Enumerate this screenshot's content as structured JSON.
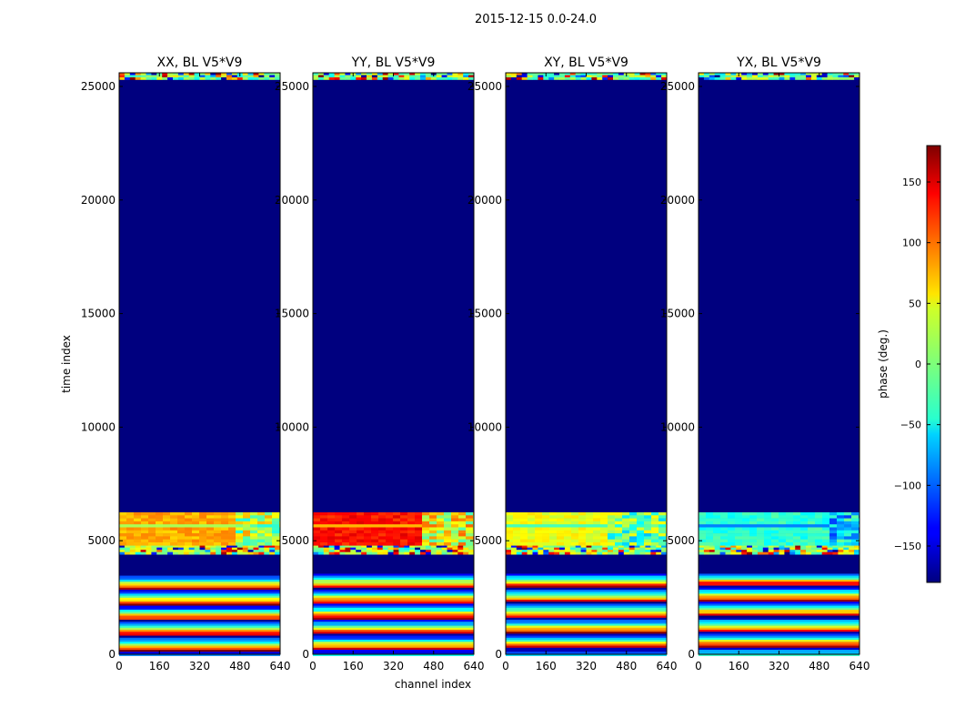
{
  "figure_title": "2015-12-15 0.0-24.0",
  "colors": {
    "masked": "#00007f",
    "frame": "#000000",
    "background": "#ffffff"
  },
  "chart_data": {
    "type": "heatmap",
    "title": "2015-12-15 0.0-24.0",
    "xlabel": "channel index",
    "ylabel": "time index",
    "xlim": [
      0,
      640
    ],
    "ylim": [
      0,
      25600
    ],
    "xticks": [
      0,
      160,
      320,
      480,
      640
    ],
    "xtick_labels": [
      "0",
      "160",
      "320",
      "480",
      "640"
    ],
    "yticks": [
      0,
      5000,
      10000,
      15000,
      20000,
      25000
    ],
    "ytick_labels": [
      "0",
      "5000",
      "10000",
      "15000",
      "20000",
      "25000"
    ],
    "colorbar": {
      "label": "phase (deg.)",
      "range": [
        -180,
        180
      ],
      "ticks": [
        -150,
        -100,
        -50,
        0,
        50,
        100,
        150
      ],
      "tick_labels": [
        "−150",
        "−100",
        "−50",
        "0",
        "50",
        "100",
        "150"
      ],
      "colormap": "jet"
    },
    "panels": [
      {
        "title": "XX, BL V5*V9",
        "regions": [
          {
            "t0": 0,
            "t1": 3550,
            "kind": "fringes",
            "mean_phase": 0
          },
          {
            "t0": 3550,
            "t1": 4400,
            "kind": "masked"
          },
          {
            "t0": 4400,
            "t1": 4800,
            "kind": "noise",
            "mean_phase": 20
          },
          {
            "t0": 4800,
            "t1": 6250,
            "kind": "band",
            "mean_phase": 75,
            "switch_channel": 450,
            "after_phase": 20
          },
          {
            "t0": 6250,
            "t1": 25300,
            "kind": "masked"
          },
          {
            "t0": 25300,
            "t1": 25600,
            "kind": "noise",
            "mean_phase": 0
          }
        ]
      },
      {
        "title": "YY, BL V5*V9",
        "regions": [
          {
            "t0": 0,
            "t1": 3550,
            "kind": "fringes",
            "mean_phase": 0
          },
          {
            "t0": 3550,
            "t1": 4400,
            "kind": "masked"
          },
          {
            "t0": 4400,
            "t1": 4800,
            "kind": "noise",
            "mean_phase": 20
          },
          {
            "t0": 4800,
            "t1": 6250,
            "kind": "band",
            "mean_phase": 130,
            "switch_channel": 410,
            "after_phase": 40
          },
          {
            "t0": 6250,
            "t1": 25300,
            "kind": "masked"
          },
          {
            "t0": 25300,
            "t1": 25600,
            "kind": "noise",
            "mean_phase": 0
          }
        ]
      },
      {
        "title": "XY, BL V5*V9",
        "regions": [
          {
            "t0": 0,
            "t1": 3550,
            "kind": "fringes",
            "mean_phase": 0
          },
          {
            "t0": 3550,
            "t1": 4400,
            "kind": "masked"
          },
          {
            "t0": 4400,
            "t1": 4800,
            "kind": "noise",
            "mean_phase": 10
          },
          {
            "t0": 4800,
            "t1": 6250,
            "kind": "band",
            "mean_phase": 40,
            "switch_channel": 400,
            "after_phase": -10
          },
          {
            "t0": 6250,
            "t1": 25300,
            "kind": "masked"
          },
          {
            "t0": 25300,
            "t1": 25600,
            "kind": "noise",
            "mean_phase": 0
          }
        ]
      },
      {
        "title": "YX, BL V5*V9",
        "regions": [
          {
            "t0": 0,
            "t1": 3550,
            "kind": "fringes",
            "mean_phase": 0
          },
          {
            "t0": 3550,
            "t1": 4400,
            "kind": "masked"
          },
          {
            "t0": 4400,
            "t1": 4800,
            "kind": "noise",
            "mean_phase": 10
          },
          {
            "t0": 4800,
            "t1": 6250,
            "kind": "band",
            "mean_phase": -30,
            "switch_channel": 500,
            "after_phase": -60
          },
          {
            "t0": 6250,
            "t1": 25300,
            "kind": "masked"
          },
          {
            "t0": 25300,
            "t1": 25600,
            "kind": "noise",
            "mean_phase": 0
          }
        ]
      }
    ]
  }
}
